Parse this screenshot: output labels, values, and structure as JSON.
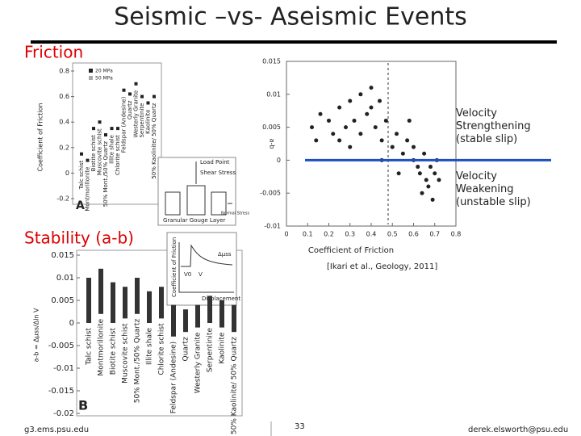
{
  "title": "Seismic –vs- Aseismic Events",
  "friction_label": "Friction",
  "stability_label": "Stability (a-b)",
  "citation": "[Ikari et al., Geology, 2011]",
  "footer": {
    "left": "g3.ems.psu.edu",
    "page": "33",
    "right": "derek.elsworth@psu.edu"
  },
  "categories": [
    "Talc schist",
    "Montmorillonite",
    "Biotite schist",
    "Muscovite schist",
    "50% Mont./50% Quartz",
    "Illite shale",
    "Chlorite schist",
    "Feldspar (Andesine)",
    "Quartz",
    "Westerly Granite",
    "Serpentinite",
    "Kaolinite",
    "50% Kaolinite/ 50% Quartz"
  ],
  "panel_a": {
    "panel": "A",
    "ylabel": "Coefficient of Friction",
    "legend": [
      "20 MPa",
      "50 MPa"
    ],
    "ylim": [
      -0.2,
      0.8
    ],
    "yticks": [
      -0.2,
      0,
      0.2,
      0.4,
      0.6,
      0.8
    ],
    "values": [
      0.15,
      0.1,
      0.35,
      0.4,
      0.3,
      0.35,
      0.35,
      0.65,
      0.62,
      0.7,
      0.6,
      0.55,
      0.6
    ]
  },
  "inset_apparatus": {
    "labels": [
      "Load Point",
      "Shear Stress",
      "Normal Stress",
      "Granular Gouge Layer"
    ]
  },
  "scatter": {
    "xlabel": "Coefficient of Friction",
    "ylabel": "a-b",
    "xlim": [
      0,
      0.8
    ],
    "xticks": [
      0,
      0.1,
      0.2,
      0.3,
      0.4,
      0.5,
      0.6,
      0.7,
      0.8
    ],
    "ylim": [
      -0.01,
      0.015
    ],
    "yticks": [
      -0.01,
      -0.005,
      0,
      0.005,
      0.01,
      0.015
    ],
    "x": [
      0.12,
      0.14,
      0.16,
      0.2,
      0.22,
      0.25,
      0.28,
      0.3,
      0.32,
      0.35,
      0.38,
      0.4,
      0.42,
      0.45,
      0.47,
      0.5,
      0.52,
      0.55,
      0.57,
      0.6,
      0.62,
      0.63,
      0.65,
      0.66,
      0.67,
      0.68,
      0.7,
      0.72,
      0.35,
      0.4,
      0.3,
      0.45,
      0.6,
      0.64,
      0.69,
      0.71,
      0.58,
      0.53,
      0.25,
      0.44
    ],
    "y": [
      0.005,
      0.003,
      0.007,
      0.006,
      0.004,
      0.008,
      0.005,
      0.009,
      0.006,
      0.004,
      0.007,
      0.011,
      0.005,
      0.003,
      0.006,
      0.002,
      0.004,
      0.001,
      0.003,
      0.0,
      -0.001,
      -0.002,
      0.001,
      -0.003,
      -0.004,
      -0.001,
      -0.002,
      -0.003,
      0.01,
      0.008,
      0.002,
      0.0,
      0.002,
      -0.005,
      -0.006,
      0.0,
      0.006,
      -0.002,
      0.003,
      0.009
    ],
    "threshold": 0.48,
    "upper_note": "Velocity Strengthening (stable slip)",
    "lower_note": "Velocity Weakening (unstable slip)"
  },
  "inset_rate": {
    "ylabel": "Coefficient of Friction",
    "xlabel": "Displacement",
    "step": "Δμss",
    "v0": "V0",
    "v": "V"
  },
  "panel_b": {
    "panel": "B",
    "ylabel": "a-b = Δμss/Δln V",
    "ylim": [
      -0.02,
      0.015
    ],
    "yticks": [
      -0.02,
      -0.015,
      -0.01,
      -0.005,
      0,
      0.005,
      0.01,
      0.015
    ],
    "low": [
      0.0,
      0.002,
      0.0,
      0.001,
      0.002,
      0.0,
      0.001,
      -0.003,
      -0.002,
      -0.001,
      0.0,
      -0.001,
      -0.002
    ],
    "high": [
      0.01,
      0.012,
      0.009,
      0.008,
      0.01,
      0.007,
      0.008,
      0.004,
      0.003,
      0.004,
      0.006,
      0.005,
      0.004
    ]
  }
}
